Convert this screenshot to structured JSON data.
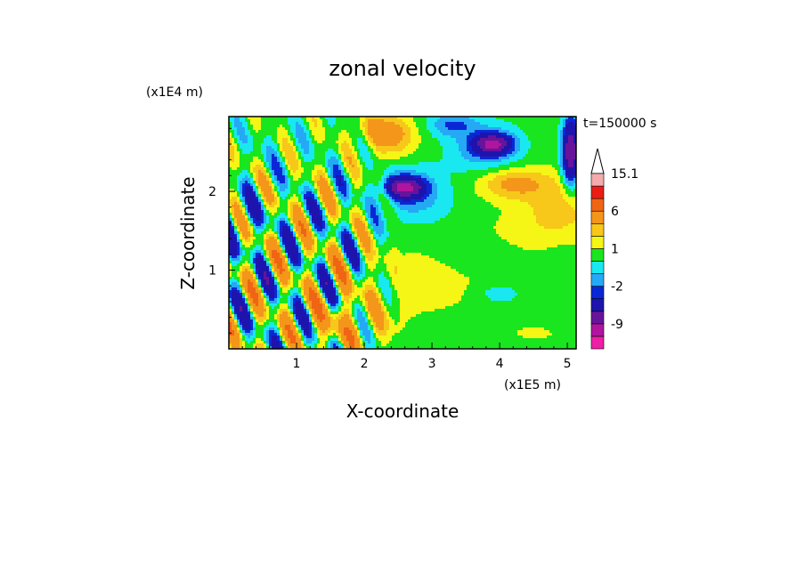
{
  "chart_data": {
    "type": "heatmap",
    "title": "zonal velocity",
    "xlabel": "X-coordinate",
    "ylabel": "Z-coordinate",
    "x_multiplier": "(x1E5 m)",
    "y_multiplier": "(x1E4 m)",
    "time_label": "t=150000 s",
    "xlim": [
      0,
      5.13
    ],
    "ylim": [
      0,
      2.95
    ],
    "x_ticks": [
      1,
      2,
      3,
      4,
      5
    ],
    "y_ticks": [
      1,
      2
    ],
    "x_tick_labels": [
      "1",
      "2",
      "3",
      "4",
      "5"
    ],
    "y_tick_labels": [
      "1",
      "2"
    ],
    "colorbar": {
      "labels": [
        "15.1",
        "6",
        "1",
        "-2",
        "-9"
      ],
      "label_values": [
        15.1,
        6,
        1,
        -2,
        -9
      ],
      "levels": [
        -15,
        -12,
        -9,
        -6,
        -3,
        -2,
        -1,
        0,
        1,
        2,
        3,
        6,
        9,
        12,
        15.1
      ],
      "colors": [
        "#ee1fa6",
        "#b0159f",
        "#67149a",
        "#1e14ad",
        "#0a27d6",
        "#25a9f5",
        "#19e8f0",
        "#19e61e",
        "#f5f516",
        "#f7c71a",
        "#f3961a",
        "#f06513",
        "#ea1d16",
        "#f3abab"
      ],
      "extend": "max"
    },
    "features": [
      {
        "type": "background",
        "value": 0.5
      },
      {
        "x": 2.8,
        "z": 0.9,
        "sx": 1.4,
        "sz": 0.6,
        "value": 0.8
      },
      {
        "x": 4.6,
        "z": 0.2,
        "sx": 0.6,
        "sz": 0.15,
        "value": 0.6
      },
      {
        "x": 2.6,
        "z": 2.05,
        "sx": 0.25,
        "sz": 0.12,
        "value": -9
      },
      {
        "x": 2.7,
        "z": 2.0,
        "sx": 0.45,
        "sz": 0.3,
        "value": -2.5
      },
      {
        "x": 3.0,
        "z": 1.7,
        "sx": 0.7,
        "sz": 0.35,
        "value": -0.5
      },
      {
        "x": 3.7,
        "z": 1.2,
        "sx": 0.6,
        "sz": 0.25,
        "value": -0.5
      },
      {
        "x": 4.0,
        "z": 0.7,
        "sx": 0.3,
        "sz": 0.12,
        "value": -1.5
      },
      {
        "x": 3.9,
        "z": 2.6,
        "sx": 0.25,
        "sz": 0.12,
        "value": -9
      },
      {
        "x": 3.8,
        "z": 2.55,
        "sx": 0.5,
        "sz": 0.3,
        "value": -2.5
      },
      {
        "x": 3.3,
        "z": 2.85,
        "sx": 0.35,
        "sz": 0.15,
        "value": -2.5
      },
      {
        "x": 2.4,
        "z": 2.7,
        "sx": 0.35,
        "sz": 0.25,
        "value": 3
      },
      {
        "x": 2.2,
        "z": 2.8,
        "sx": 0.3,
        "sz": 0.15,
        "value": 2
      },
      {
        "x": 4.2,
        "z": 2.1,
        "sx": 0.5,
        "sz": 0.2,
        "value": 3
      },
      {
        "x": 4.9,
        "z": 1.8,
        "sx": 0.5,
        "sz": 0.4,
        "value": 2
      },
      {
        "x": 4.3,
        "z": 1.5,
        "sx": 0.8,
        "sz": 0.35,
        "value": 0.6
      },
      {
        "x": 2.0,
        "z": 1.3,
        "sx": 0.3,
        "sz": 0.35,
        "value": -0.4
      },
      {
        "x": 1.7,
        "z": 0.3,
        "sx": 0.6,
        "sz": 0.3,
        "value": 2
      },
      {
        "x": 0.6,
        "z": 2.6,
        "sx": 0.55,
        "sz": 0.3,
        "value": -0.3
      },
      {
        "x": 0.2,
        "z": 1.7,
        "sx": 0.3,
        "sz": 0.3,
        "value": -1.5
      },
      {
        "x": 5.05,
        "z": 2.5,
        "sx": 0.12,
        "sz": 0.4,
        "value": -9
      },
      {
        "x": 4.9,
        "z": 0.9,
        "sx": 0.3,
        "sz": 0.6,
        "value": -0.4
      },
      {
        "x": 2.9,
        "z": 0.1,
        "sx": 0.4,
        "sz": 0.08,
        "value": -0.5
      },
      {
        "type": "waves",
        "x0": 0.0,
        "x1": 2.3,
        "amp": 7,
        "kx": 11.0,
        "kz": 5.5
      }
    ]
  }
}
